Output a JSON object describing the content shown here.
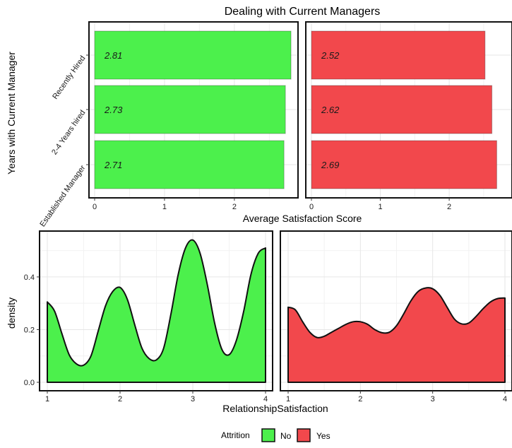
{
  "chart_data": [
    {
      "type": "bar",
      "orientation": "horizontal",
      "title": "Dealing with Current Managers",
      "xlabel": "Average Satisfaction Score",
      "ylabel": "Years with Current Manager",
      "categories": [
        "Recently Hired",
        "2-4 Years hired",
        "Established Manager"
      ],
      "xlim": [
        0,
        2.85
      ],
      "xticks": [
        0,
        1,
        2
      ],
      "grid": true,
      "facets": [
        {
          "attrition": "No",
          "color": "#4cf04c",
          "values": [
            2.81,
            2.73,
            2.71
          ],
          "labels": [
            "2.81",
            "2.73",
            "2.71"
          ]
        },
        {
          "attrition": "Yes",
          "color": "#f2484c",
          "values": [
            2.52,
            2.62,
            2.69
          ],
          "labels": [
            "2.52",
            "2.62",
            "2.69"
          ]
        }
      ]
    },
    {
      "type": "area",
      "xlabel": "RelationshipSatisfaction",
      "ylabel": "density",
      "xlim": [
        1,
        4
      ],
      "ylim": [
        0,
        0.55
      ],
      "xticks": [
        1,
        2,
        3,
        4
      ],
      "yticks": [
        0.0,
        0.2,
        0.4
      ],
      "ytick_labels": [
        "0.0",
        "0.2",
        "0.4"
      ],
      "grid": true,
      "facets": [
        {
          "attrition": "No",
          "color": "#4cf04c",
          "x": [
            1.0,
            1.1,
            1.2,
            1.3,
            1.4,
            1.5,
            1.6,
            1.7,
            1.8,
            1.9,
            2.0,
            2.1,
            2.2,
            2.3,
            2.4,
            2.5,
            2.6,
            2.7,
            2.8,
            2.9,
            3.0,
            3.1,
            3.2,
            3.3,
            3.4,
            3.5,
            3.6,
            3.7,
            3.8,
            3.9,
            4.0
          ],
          "y": [
            0.305,
            0.27,
            0.185,
            0.105,
            0.07,
            0.065,
            0.1,
            0.195,
            0.29,
            0.345,
            0.36,
            0.315,
            0.22,
            0.13,
            0.09,
            0.085,
            0.13,
            0.26,
            0.41,
            0.51,
            0.54,
            0.49,
            0.37,
            0.225,
            0.125,
            0.105,
            0.16,
            0.27,
            0.41,
            0.49,
            0.51
          ]
        },
        {
          "attrition": "Yes",
          "color": "#f2484c",
          "x": [
            1.0,
            1.1,
            1.2,
            1.3,
            1.4,
            1.5,
            1.6,
            1.7,
            1.8,
            1.9,
            2.0,
            2.1,
            2.2,
            2.3,
            2.4,
            2.5,
            2.6,
            2.7,
            2.8,
            2.9,
            3.0,
            3.1,
            3.2,
            3.3,
            3.4,
            3.5,
            3.6,
            3.7,
            3.8,
            3.9,
            4.0
          ],
          "y": [
            0.285,
            0.275,
            0.23,
            0.19,
            0.17,
            0.175,
            0.19,
            0.205,
            0.22,
            0.23,
            0.23,
            0.22,
            0.2,
            0.188,
            0.19,
            0.215,
            0.26,
            0.31,
            0.345,
            0.358,
            0.355,
            0.33,
            0.285,
            0.24,
            0.222,
            0.225,
            0.25,
            0.28,
            0.305,
            0.318,
            0.32
          ]
        }
      ]
    }
  ],
  "legend": {
    "title": "Attrition",
    "position": "bottom-center",
    "items": [
      {
        "label": "No",
        "color": "#4cf04c"
      },
      {
        "label": "Yes",
        "color": "#f2484c"
      }
    ]
  }
}
